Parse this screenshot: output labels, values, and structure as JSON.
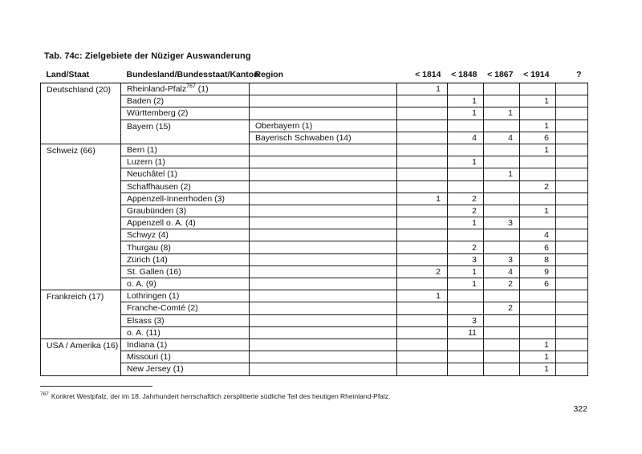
{
  "doc": {
    "title": "Tab. 74c: Zielgebiete der Nüziger Auswanderung",
    "page_number": "322",
    "footnote": {
      "marker": "767",
      "text": "Konkret Westpfalz, der im 18. Jahrhundert herrschaftlich zersplitterte südliche Teil des heutigen Rheinland-Pfalz."
    }
  },
  "table": {
    "columns": [
      "Land/Staat",
      "Bundesland/Bundesstaat/Kanton",
      "Region",
      "< 1814",
      "< 1848",
      "< 1867",
      "< 1914",
      "?"
    ],
    "value_columns": [
      "< 1814",
      "< 1848",
      "< 1867",
      "< 1914",
      "?"
    ],
    "sections": [
      {
        "land": "Deutschland (20)",
        "rows": [
          {
            "kanton": "Rheinland-Pfalz",
            "sup": "767",
            "after": " (1)",
            "region": "",
            "values": [
              "1",
              "",
              "",
              "",
              ""
            ]
          },
          {
            "kanton": "Baden (2)",
            "region": "",
            "values": [
              "",
              "1",
              "",
              "1",
              ""
            ]
          },
          {
            "kanton": "Württemberg (2)",
            "region": "",
            "values": [
              "",
              "1",
              "1",
              "",
              ""
            ]
          },
          {
            "kanton": "Bayern (15)",
            "kanton_rowspan": 2,
            "region": "Oberbayern (1)",
            "values": [
              "",
              "",
              "",
              "1",
              ""
            ]
          },
          {
            "kanton": null,
            "region": "Bayerisch Schwaben (14)",
            "values": [
              "",
              "4",
              "4",
              "6",
              ""
            ]
          }
        ]
      },
      {
        "land": "Schweiz (66)",
        "rows": [
          {
            "kanton": "Bern (1)",
            "region": "",
            "values": [
              "",
              "",
              "",
              "1",
              ""
            ]
          },
          {
            "kanton": "Luzern (1)",
            "region": "",
            "values": [
              "",
              "1",
              "",
              "",
              ""
            ]
          },
          {
            "kanton": "Neuchâtel (1)",
            "region": "",
            "values": [
              "",
              "",
              "1",
              "",
              ""
            ]
          },
          {
            "kanton": "Schaffhausen (2)",
            "region": "",
            "values": [
              "",
              "",
              "",
              "2",
              ""
            ]
          },
          {
            "kanton": "Appenzell-Innerrhoden (3)",
            "region": "",
            "values": [
              "1",
              "2",
              "",
              "",
              ""
            ]
          },
          {
            "kanton": "Graubünden (3)",
            "region": "",
            "values": [
              "",
              "2",
              "",
              "1",
              ""
            ]
          },
          {
            "kanton": "Appenzell  o. A. (4)",
            "region": "",
            "values": [
              "",
              "1",
              "3",
              "",
              ""
            ]
          },
          {
            "kanton": "Schwyz (4)",
            "region": "",
            "values": [
              "",
              "",
              "",
              "4",
              ""
            ]
          },
          {
            "kanton": "Thurgau (8)",
            "region": "",
            "values": [
              "",
              "2",
              "",
              "6",
              ""
            ]
          },
          {
            "kanton": "Zürich (14)",
            "region": "",
            "values": [
              "",
              "3",
              "3",
              "8",
              ""
            ]
          },
          {
            "kanton": "St. Gallen (16)",
            "region": "",
            "values": [
              "2",
              "1",
              "4",
              "9",
              ""
            ]
          },
          {
            "kanton": "o. A. (9)",
            "region": "",
            "values": [
              "",
              "1",
              "2",
              "6",
              ""
            ]
          }
        ]
      },
      {
        "land": "Frankreich (17)",
        "rows": [
          {
            "kanton": "Lothringen (1)",
            "region": "",
            "values": [
              "1",
              "",
              "",
              "",
              ""
            ]
          },
          {
            "kanton": "Franche-Comté (2)",
            "region": "",
            "values": [
              "",
              "",
              "2",
              "",
              ""
            ]
          },
          {
            "kanton": "Elsass (3)",
            "region": "",
            "values": [
              "",
              "3",
              "",
              "",
              ""
            ]
          },
          {
            "kanton": "o. A. (11)",
            "region": "",
            "values": [
              "",
              "11",
              "",
              "",
              ""
            ]
          }
        ]
      },
      {
        "land": "USA / Amerika (16)",
        "rows": [
          {
            "kanton": "Indiana (1)",
            "region": "",
            "values": [
              "",
              "",
              "",
              "1",
              ""
            ]
          },
          {
            "kanton": "Missouri (1)",
            "region": "",
            "values": [
              "",
              "",
              "",
              "1",
              ""
            ]
          },
          {
            "kanton": "New Jersey (1)",
            "region": "",
            "values": [
              "",
              "",
              "",
              "1",
              ""
            ]
          }
        ]
      }
    ]
  }
}
